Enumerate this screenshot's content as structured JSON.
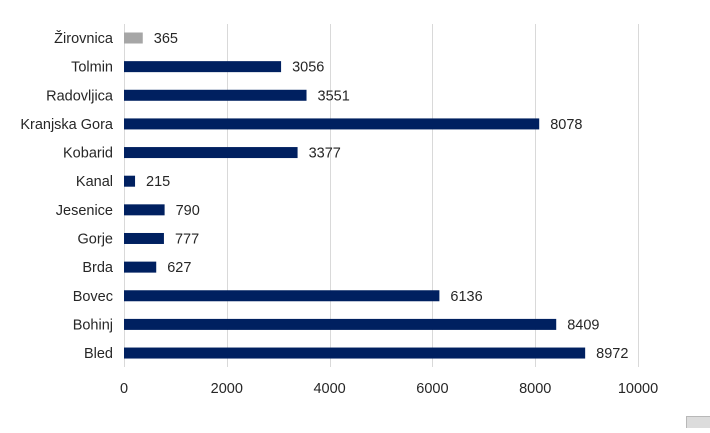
{
  "chart_data": {
    "type": "bar",
    "orientation": "horizontal",
    "title": "",
    "xlabel": "",
    "ylabel": "",
    "categories": [
      "Žirovnica",
      "Tolmin",
      "Radovljica",
      "Kranjska Gora",
      "Kobarid",
      "Kanal",
      "Jesenice",
      "Gorje",
      "Brda",
      "Bovec",
      "Bohinj",
      "Bled"
    ],
    "values": [
      365,
      3056,
      3551,
      8078,
      3377,
      215,
      790,
      777,
      627,
      6136,
      8409,
      8972
    ],
    "bar_colors": [
      "#a6a6a6",
      "#002060",
      "#002060",
      "#002060",
      "#002060",
      "#002060",
      "#002060",
      "#002060",
      "#002060",
      "#002060",
      "#002060",
      "#002060"
    ],
    "xlim": [
      0,
      10000
    ],
    "xticks": [
      0,
      2000,
      4000,
      6000,
      8000,
      10000
    ],
    "grid": "vertical",
    "data_labels": true,
    "legend": "none"
  },
  "colors": {
    "primary_bar": "#002060",
    "highlight_bar": "#a6a6a6",
    "gridline": "#d9d9d9",
    "text": "#262626"
  }
}
